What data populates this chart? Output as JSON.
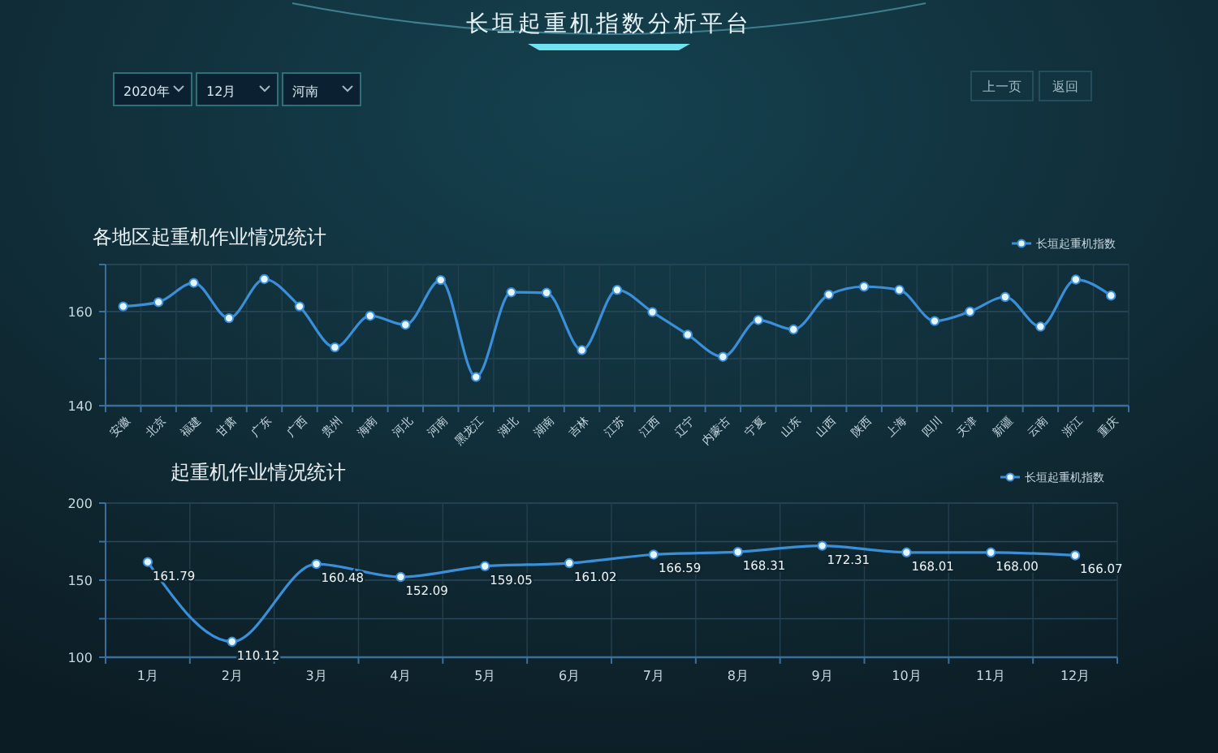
{
  "chart_data": [
    {
      "type": "other",
      "title": "长垣起重机指数分析平台",
      "annotations": [
        "2020年",
        "12月",
        "河南",
        "上一页",
        "返回"
      ]
    },
    {
      "type": "line",
      "title": "各地区起重机作业情况统计",
      "categories": [
        "安徽",
        "北京",
        "福建",
        "甘肃",
        "广东",
        "广西",
        "贵州",
        "海南",
        "河北",
        "河南",
        "黑龙江",
        "湖北",
        "湖南",
        "吉林",
        "江苏",
        "江西",
        "辽宁",
        "内蒙古",
        "宁夏",
        "山东",
        "山西",
        "陕西",
        "上海",
        "四川",
        "天津",
        "新疆",
        "云南",
        "浙江",
        "重庆"
      ],
      "series": [
        {
          "name": "长垣起重机指数",
          "color": "#3b8fd9",
          "values": [
            161.1,
            162.0,
            166.1,
            158.6,
            166.9,
            161.1,
            152.4,
            159.1,
            157.2,
            166.7,
            146.1,
            164.1,
            164.0,
            151.8,
            164.6,
            159.9,
            155.1,
            150.4,
            158.2,
            156.2,
            163.6,
            165.3,
            164.6,
            158.0,
            160.0,
            163.1,
            156.8,
            166.8,
            163.4
          ]
        }
      ],
      "ylim": [
        140,
        170
      ],
      "yticks": [
        140,
        {
          "value": 150,
          "label": null
        },
        160,
        {
          "value": 170,
          "label": null
        }
      ],
      "grid": true,
      "legend": "top right",
      "marker": "circle"
    },
    {
      "type": "line",
      "title": "起重机作业情况统计",
      "categories": [
        "1月",
        "2月",
        "3月",
        "4月",
        "5月",
        "6月",
        "7月",
        "8月",
        "9月",
        "10月",
        "11月",
        "12月"
      ],
      "series": [
        {
          "name": "长垣起重机指数",
          "color": "#3b8fd9",
          "values": [
            161.79,
            110.12,
            160.48,
            152.09,
            159.05,
            161.02,
            166.59,
            168.31,
            172.31,
            168.01,
            168.0,
            166.07
          ],
          "value_labels": [
            "161.79",
            "110.12",
            "160.48",
            "152.09",
            "159.05",
            "161.02",
            "166.59",
            "168.31",
            "172.31",
            "168.01",
            "168.00",
            "166.07"
          ]
        }
      ],
      "ylim": [
        100,
        200
      ],
      "yticks": [
        100,
        {
          "value": 125,
          "label": null
        },
        150,
        {
          "value": 175,
          "label": null
        },
        200
      ],
      "grid": true,
      "legend": "top right",
      "marker": "circle"
    }
  ]
}
